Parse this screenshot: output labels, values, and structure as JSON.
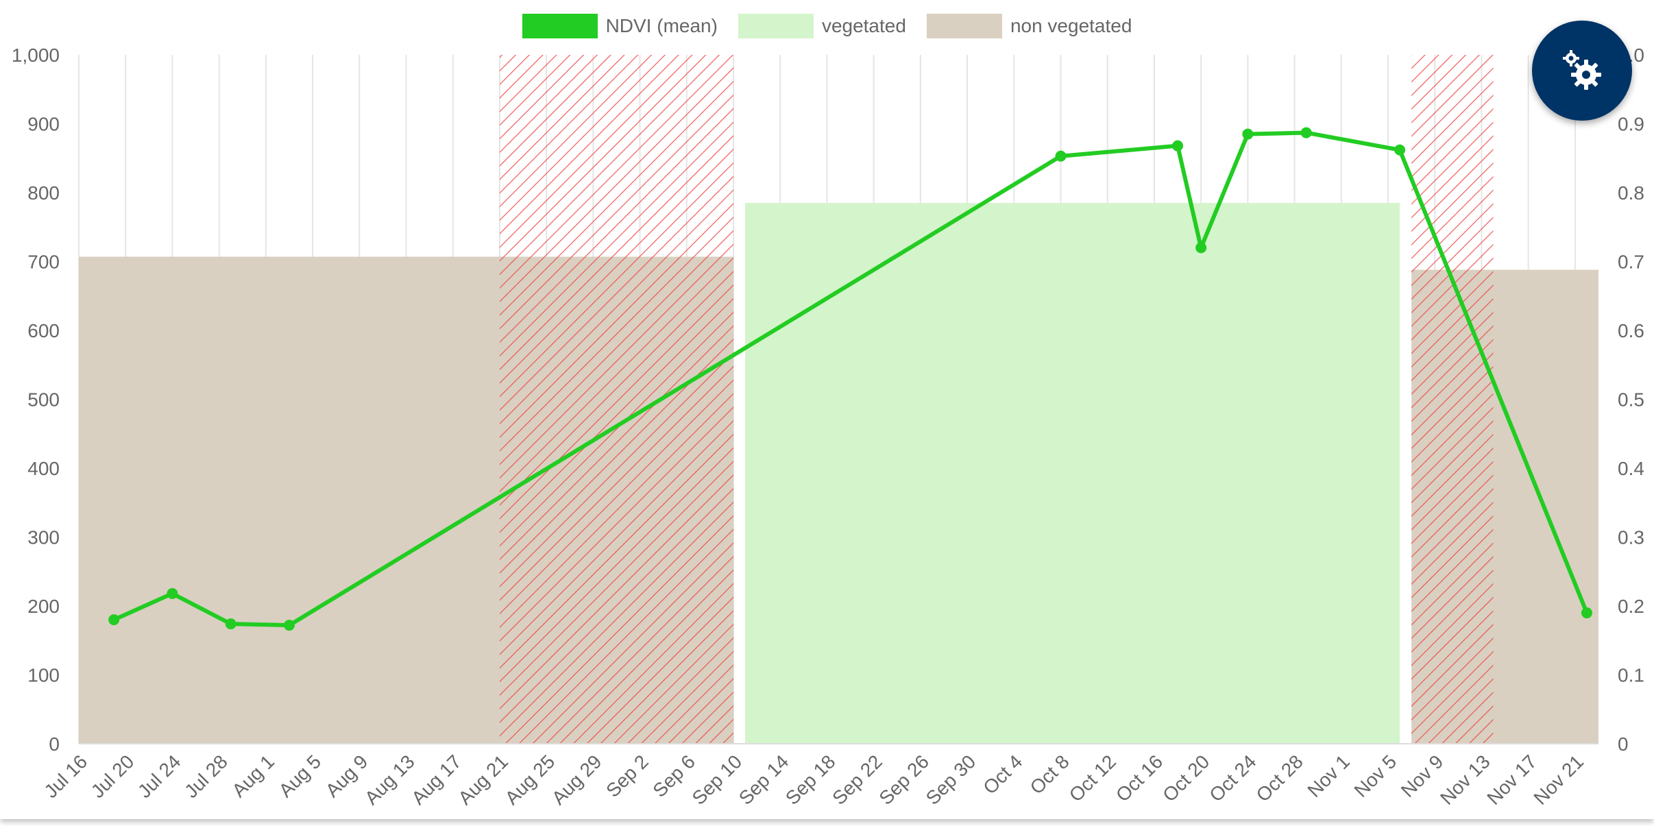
{
  "colors": {
    "ndvi_line": "#22cc22",
    "vegetated_fill": "#d4f4cb",
    "non_vegetated_fill": "#d9d0c1",
    "hatch": "#ee4444",
    "grid": "#e5e5e5",
    "fab_bg": "#003366"
  },
  "settings_button": {
    "icon": "gears-icon"
  },
  "chart_data": {
    "type": "line",
    "x_axis": {
      "kind": "date",
      "min": "2023-07-16",
      "max": "2023-11-23",
      "tick_labels": [
        "Jul 16",
        "Jul 20",
        "Jul 24",
        "Jul 28",
        "Aug 1",
        "Aug 5",
        "Aug 9",
        "Aug 13",
        "Aug 17",
        "Aug 21",
        "Aug 25",
        "Aug 29",
        "Sep 2",
        "Sep 6",
        "Sep 10",
        "Sep 14",
        "Sep 18",
        "Sep 22",
        "Sep 26",
        "Sep 30",
        "Oct 4",
        "Oct 8",
        "Oct 12",
        "Oct 16",
        "Oct 20",
        "Oct 24",
        "Oct 28",
        "Nov 1",
        "Nov 5",
        "Nov 9",
        "Nov 13",
        "Nov 17",
        "Nov 21"
      ]
    },
    "y_left": {
      "min": 0,
      "max": 1000,
      "tick_labels": [
        "0",
        "100",
        "200",
        "300",
        "400",
        "500",
        "600",
        "700",
        "800",
        "900",
        "1,000"
      ]
    },
    "y_right": {
      "min": 0,
      "max": 1.0,
      "tick_labels": [
        "0",
        "0.1",
        "0.2",
        "0.3",
        "0.4",
        "0.5",
        "0.6",
        "0.7",
        "0.8",
        "0.9",
        "1.0"
      ]
    },
    "grid": "vertical",
    "legend": {
      "placement": "top-center",
      "items": [
        "NDVI (mean)",
        "vegetated",
        "non vegetated"
      ]
    },
    "series": [
      {
        "name": "NDVI (mean)",
        "kind": "line",
        "axis": "right",
        "points": [
          {
            "x": "2023-07-19",
            "y": 0.18
          },
          {
            "x": "2023-07-24",
            "y": 0.218
          },
          {
            "x": "2023-07-29",
            "y": 0.174
          },
          {
            "x": "2023-08-03",
            "y": 0.172
          },
          {
            "x": "2023-10-08",
            "y": 0.853
          },
          {
            "x": "2023-10-18",
            "y": 0.868
          },
          {
            "x": "2023-10-20",
            "y": 0.72
          },
          {
            "x": "2023-10-24",
            "y": 0.885
          },
          {
            "x": "2023-10-29",
            "y": 0.887
          },
          {
            "x": "2023-11-06",
            "y": 0.862
          },
          {
            "x": "2023-11-22",
            "y": 0.19
          }
        ]
      },
      {
        "name": "vegetated",
        "kind": "area",
        "axis": "left",
        "segments": [
          {
            "x0": "2023-09-11",
            "x1": "2023-11-06",
            "y": 785
          }
        ]
      },
      {
        "name": "non vegetated",
        "kind": "area",
        "axis": "left",
        "segments": [
          {
            "x0": "2023-07-16",
            "x1": "2023-09-10",
            "y": 707
          },
          {
            "x0": "2023-11-07",
            "x1": "2023-11-23",
            "y": 688
          }
        ]
      }
    ],
    "hatched_ranges": [
      {
        "x0": "2023-08-21",
        "x1": "2023-09-10"
      },
      {
        "x0": "2023-11-07",
        "x1": "2023-11-14"
      }
    ]
  }
}
